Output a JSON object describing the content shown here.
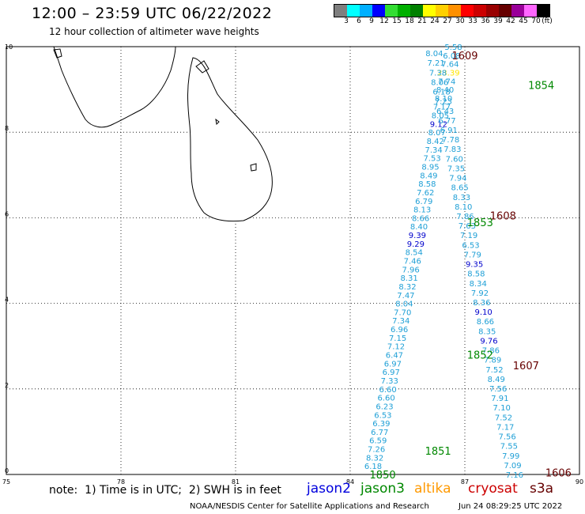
{
  "header": {
    "title": "12:00 – 23:59 UTC 06/22/2022",
    "subtitle": "12 hour collection of altimeter wave heights"
  },
  "colorbar": {
    "colors": [
      "#7f7f7f",
      "#00ffff",
      "#00b0ff",
      "#0000ff",
      "#33dd33",
      "#00b000",
      "#008000",
      "#ffff00",
      "#ffd000",
      "#ff9000",
      "#ff0000",
      "#cc0000",
      "#990000",
      "#660000",
      "#990099",
      "#ff66ff",
      "#000000"
    ],
    "labels": [
      "3",
      "6",
      "9",
      "12",
      "15",
      "18",
      "21",
      "24",
      "27",
      "30",
      "33",
      "36",
      "39",
      "42",
      "45",
      "70",
      "(ft)"
    ]
  },
  "axes": {
    "x_ticks": [
      "75",
      "78",
      "81",
      "84",
      "87",
      "90"
    ],
    "y_ticks": [
      "0",
      "2",
      "4",
      "6",
      "8",
      "10"
    ]
  },
  "map": {
    "land": "Sri Lanka and southern tip of India coastline",
    "grid": true
  },
  "chart_data": {
    "type": "scatter",
    "xlim": [
      75,
      90
    ],
    "ylim": [
      0,
      10
    ],
    "tracks": [
      {
        "color": "#1e9fd6",
        "start": [
          84.6,
          0.2
        ],
        "end": [
          86.7,
          10.0
        ],
        "values": [
          "6.18",
          "8.32",
          "7.26",
          "6.59",
          "6.77",
          "6.39",
          "6.53",
          "6.23",
          "6.60",
          "6.60",
          "7.33",
          "6.97",
          "6.97",
          "6.47",
          "7.12",
          "7.15",
          "6.96",
          "7.34",
          "7.70",
          "8.04",
          "7.47",
          "8.32",
          "8.31",
          "7.96",
          "7.46",
          "8.54",
          "9.29",
          "9.39",
          "8.40",
          "8.66",
          "8.13",
          "6.79",
          "7.62",
          "8.58",
          "8.49",
          "8.95",
          "7.53",
          "7.34",
          "8.42",
          "8.07",
          "9.12",
          "8.05",
          "7.17",
          "8.10",
          "8.40",
          "7.74",
          "23.39",
          "7.64",
          "6.08",
          "5.58"
        ],
        "highlight": {
          "9.29": "#0000cc",
          "9.39": "#0000cc",
          "9.12": "#0000cc",
          "23.39": "#ffe600"
        }
      },
      {
        "color": "#1e9fd6",
        "start": [
          88.3,
          0.0
        ],
        "end": [
          86.2,
          9.85
        ],
        "values": [
          "7.16",
          "7.09",
          "7.99",
          "7.55",
          "7.56",
          "7.17",
          "7.52",
          "7.10",
          "7.91",
          "7.56",
          "8.49",
          "7.52",
          "7.89",
          "7.86",
          "9.76",
          "8.35",
          "8.66",
          "9.10",
          "8.36",
          "7.92",
          "8.34",
          "8.58",
          "9.35",
          "7.79",
          "6.53",
          "7.19",
          "7.63",
          "7.86",
          "8.10",
          "8.33",
          "8.65",
          "7.94",
          "7.35",
          "7.60",
          "7.83",
          "7.78",
          "6.91",
          "6.77",
          "6.43",
          "7.23",
          "6.18",
          "8.06",
          "7.38",
          "7.21",
          "8.04"
        ],
        "highlight": {
          "9.76": "#0000cc",
          "9.10": "#0000cc",
          "9.35": "#0000cc"
        }
      }
    ],
    "time_labels": [
      {
        "text": "1850",
        "color": "#008800",
        "x": 84.85,
        "y": 0.0
      },
      {
        "text": "1851",
        "color": "#008800",
        "x": 86.3,
        "y": 0.55
      },
      {
        "text": "1852",
        "color": "#008800",
        "x": 87.4,
        "y": 2.8
      },
      {
        "text": "1853",
        "color": "#008800",
        "x": 87.4,
        "y": 5.9
      },
      {
        "text": "1854",
        "color": "#008800",
        "x": 89.0,
        "y": 9.1
      },
      {
        "text": "1606",
        "color": "#660000",
        "x": 89.45,
        "y": 0.05
      },
      {
        "text": "1607",
        "color": "#660000",
        "x": 88.6,
        "y": 2.55
      },
      {
        "text": "1608",
        "color": "#660000",
        "x": 88.0,
        "y": 6.05
      },
      {
        "text": "1609",
        "color": "#660000",
        "x": 87.0,
        "y": 9.8
      }
    ]
  },
  "footer": {
    "note": "note:  1) Time is in UTC;  2) SWH is in feet",
    "satellites": [
      {
        "name": "jason2",
        "color": "#0000dd"
      },
      {
        "name": "jason3",
        "color": "#008800"
      },
      {
        "name": "altika",
        "color": "#ff9900"
      },
      {
        "name": "cryosat",
        "color": "#cc0000"
      },
      {
        "name": "s3a",
        "color": "#660000"
      }
    ],
    "credit": "NOAA/NESDIS Center for Satellite Applications and Research",
    "timestamp": "Jun 24 08:29:25 UTC 2022"
  }
}
